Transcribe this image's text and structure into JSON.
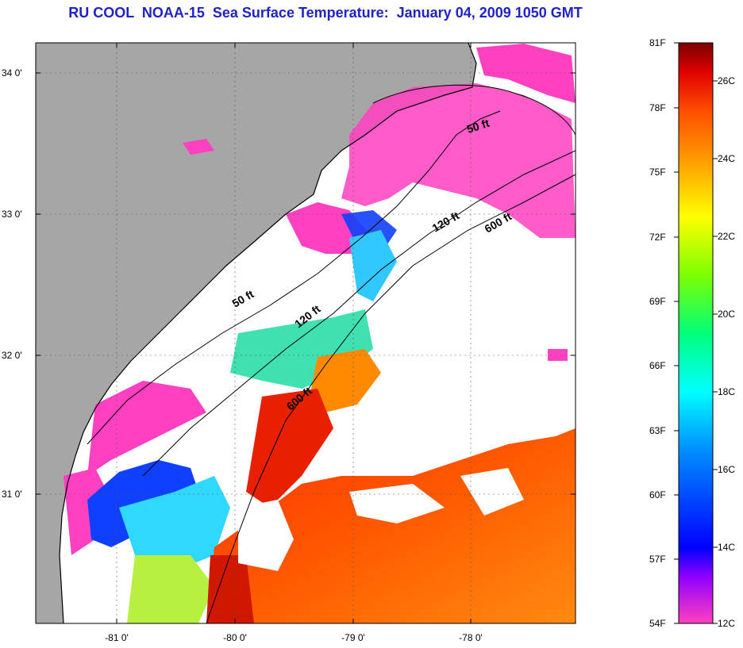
{
  "title": "RU COOL  NOAA-15  Sea Surface Temperature:  January 04, 2009 1050 GMT",
  "latitude_ticks": [
    "34 0'",
    "33 0'",
    "32 0'",
    "31 0'"
  ],
  "longitude_ticks": [
    "-81 0'",
    "-80 0'",
    "-79 0'",
    "-78 0'"
  ],
  "isobath_labels": [
    "50 ft",
    "120 ft",
    "600 ft",
    "50 ft",
    "120 ft",
    "600 ft"
  ],
  "colorbar": {
    "fahrenheit": [
      "81F",
      "78F",
      "75F",
      "72F",
      "69F",
      "66F",
      "63F",
      "60F",
      "57F",
      "54F"
    ],
    "celsius": [
      "26C",
      "24C",
      "22C",
      "20C",
      "18C",
      "16C",
      "14C",
      "12C"
    ],
    "colors": [
      "#7a0000",
      "#e00000",
      "#ff5000",
      "#ff9a00",
      "#ffff00",
      "#7cff00",
      "#00ff7a",
      "#00ffff",
      "#0090ff",
      "#0000ff",
      "#9000ff",
      "#ff40c0"
    ]
  },
  "colors": {
    "land": "#a6a6a6",
    "ocean_no_data": "#ffffff",
    "title": "#1f22c8"
  }
}
